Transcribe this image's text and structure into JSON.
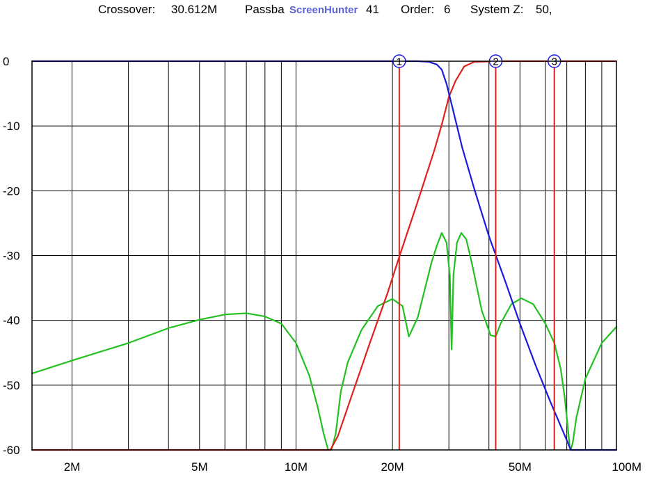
{
  "header": {
    "crossover_label": "Crossover:",
    "crossover_value": "30.612M",
    "passband_label": "Passba",
    "passband_value": "41",
    "order_label": "Order:",
    "order_value": "6",
    "sysz_label": "System Z:",
    "sysz_value": "50,",
    "watermark": "ScreenHunter"
  },
  "colors": {
    "lowpass": "#1a1ae0",
    "highpass": "#e0201a",
    "loss": "#22c020",
    "marker": "#e0201a",
    "grid": "#000000"
  },
  "chart_data": {
    "type": "line",
    "x_scale": "log",
    "xlim": [
      1.5,
      100
    ],
    "ylim": [
      -60,
      0
    ],
    "x_ticks": [
      {
        "value": 2,
        "label": "2M"
      },
      {
        "value": 5,
        "label": "5M"
      },
      {
        "value": 10,
        "label": "10M"
      },
      {
        "value": 20,
        "label": "20M"
      },
      {
        "value": 50,
        "label": "50M"
      },
      {
        "value": 100,
        "label": "100M"
      }
    ],
    "y_ticks": [
      {
        "value": 0,
        "label": "0"
      },
      {
        "value": -10,
        "label": "-10"
      },
      {
        "value": -20,
        "label": "-20"
      },
      {
        "value": -30,
        "label": "-30"
      },
      {
        "value": -40,
        "label": "-40"
      },
      {
        "value": -50,
        "label": "-50"
      },
      {
        "value": -60,
        "label": "-60"
      }
    ],
    "grid": true,
    "markers": [
      {
        "label": "1",
        "x": 21
      },
      {
        "label": "2",
        "x": 42
      },
      {
        "label": "3",
        "x": 64
      }
    ],
    "series": [
      {
        "key": "lowpass",
        "x": [
          1.5,
          5,
          10,
          20,
          24,
          26,
          27.5,
          28.5,
          29.5,
          31,
          33,
          36,
          40,
          45,
          50,
          56,
          62,
          70,
          72,
          75,
          80,
          100
        ],
        "y": [
          0,
          0,
          0,
          0,
          0,
          -0.1,
          -0.5,
          -1.3,
          -3.5,
          -7.8,
          -13.3,
          -19.7,
          -27,
          -34,
          -40.5,
          -47,
          -52.4,
          -58.5,
          -60,
          -60,
          -60,
          -60
        ]
      },
      {
        "key": "highpass",
        "x": [
          1.5,
          5,
          10,
          12.8,
          13.5,
          15,
          17,
          19.3,
          21,
          24,
          27,
          28.5,
          30,
          31.5,
          33.5,
          36,
          45,
          100
        ],
        "y": [
          -60,
          -60,
          -60,
          -60,
          -57.9,
          -51.3,
          -43.5,
          -35.8,
          -30.2,
          -21.6,
          -13.8,
          -9.8,
          -5.5,
          -3,
          -0.8,
          -0.1,
          0,
          0
        ]
      },
      {
        "key": "loss",
        "x": [
          1.5,
          2,
          3,
          4,
          5,
          6,
          7,
          8,
          9,
          10,
          11,
          11.7,
          12.2,
          12.6,
          12.9,
          13.3,
          13.8,
          14.5,
          16,
          18,
          20,
          21.5,
          22.5,
          24,
          26.5,
          27.5,
          28.5,
          29.5,
          30.2,
          30.6,
          31,
          31.8,
          32.8,
          34,
          35.5,
          38,
          40.5,
          42,
          43.5,
          47,
          50.5,
          55,
          60,
          64,
          67,
          69,
          70.5,
          71.5,
          72,
          73,
          75,
          80,
          90,
          100
        ],
        "y": [
          -48.2,
          -46.2,
          -43.5,
          -41.2,
          -39.9,
          -39.1,
          -38.9,
          -39.4,
          -40.5,
          -43.5,
          -48.5,
          -53.5,
          -57.5,
          -60,
          -60,
          -57.5,
          -51,
          -46.5,
          -41.5,
          -37.8,
          -36.7,
          -37.8,
          -42.5,
          -39.5,
          -31,
          -28.5,
          -26.5,
          -28,
          -33,
          -44.5,
          -33,
          -28,
          -26.5,
          -27.5,
          -31.5,
          -38.5,
          -42.3,
          -42.5,
          -40.5,
          -37.5,
          -36.6,
          -37.5,
          -40.5,
          -43.5,
          -47.5,
          -52,
          -56.5,
          -59.5,
          -60,
          -59,
          -55,
          -49,
          -43.5,
          -41
        ]
      }
    ]
  }
}
